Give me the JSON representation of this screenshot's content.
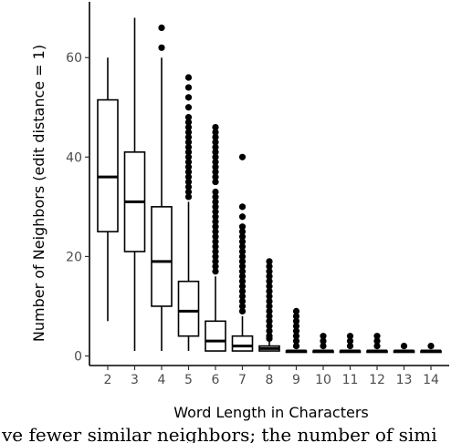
{
  "caption": "ve fewer similar neighbors; the number of simi",
  "chart_data": {
    "type": "boxplot",
    "xlabel": "Word Length in Characters",
    "ylabel": "Number of Neighbors (edit distance = 1)",
    "ylim": [
      -2,
      70
    ],
    "yticks": [
      0,
      20,
      40,
      60
    ],
    "grid": false,
    "categories": [
      "2",
      "3",
      "4",
      "5",
      "6",
      "7",
      "8",
      "9",
      "10",
      "11",
      "12",
      "13",
      "14"
    ],
    "boxes": [
      {
        "category": "2",
        "whisker_low": 7,
        "q1": 25,
        "median": 36,
        "q3": 51.5,
        "whisker_high": 60,
        "outliers": []
      },
      {
        "category": "3",
        "whisker_low": 1,
        "q1": 21,
        "median": 31,
        "q3": 41,
        "whisker_high": 68,
        "outliers": []
      },
      {
        "category": "4",
        "whisker_low": 1,
        "q1": 10,
        "median": 19,
        "q3": 30,
        "whisker_high": 60,
        "outliers": [
          62,
          66
        ]
      },
      {
        "category": "5",
        "whisker_low": 1,
        "q1": 4,
        "median": 9,
        "q3": 15,
        "whisker_high": 31,
        "outliers": [
          32,
          33,
          34,
          35,
          36,
          37,
          38,
          39,
          40,
          41,
          42,
          43,
          44,
          45,
          46,
          47,
          48,
          50,
          52,
          54,
          56
        ]
      },
      {
        "category": "6",
        "whisker_low": 1,
        "q1": 1,
        "median": 3,
        "q3": 7,
        "whisker_high": 16,
        "outliers": [
          17,
          18,
          19,
          20,
          21,
          22,
          23,
          24,
          25,
          26,
          27,
          28,
          29,
          30,
          31,
          32,
          33,
          35,
          36,
          37,
          38,
          39,
          40,
          41,
          42,
          43,
          44,
          45,
          46
        ]
      },
      {
        "category": "7",
        "whisker_low": 1,
        "q1": 1,
        "median": 2,
        "q3": 4,
        "whisker_high": 8,
        "outliers": [
          9,
          10,
          11,
          12,
          13,
          14,
          15,
          16,
          17,
          18,
          19,
          20,
          21,
          22,
          23,
          24,
          25,
          26,
          28,
          30,
          40
        ]
      },
      {
        "category": "8",
        "whisker_low": 1,
        "q1": 1,
        "median": 1.5,
        "q3": 2,
        "whisker_high": 3,
        "outliers": [
          3.5,
          4,
          5,
          6,
          7,
          8,
          9,
          10,
          11,
          12,
          13,
          14,
          15,
          16,
          17,
          18,
          19
        ]
      },
      {
        "category": "9",
        "whisker_low": 1,
        "q1": 1,
        "median": 1,
        "q3": 1,
        "whisker_high": 1,
        "outliers": [
          2,
          3,
          4,
          5,
          6,
          7,
          8,
          9
        ]
      },
      {
        "category": "10",
        "whisker_low": 1,
        "q1": 1,
        "median": 1,
        "q3": 1,
        "whisker_high": 1,
        "outliers": [
          2,
          3,
          4
        ]
      },
      {
        "category": "11",
        "whisker_low": 1,
        "q1": 1,
        "median": 1,
        "q3": 1,
        "whisker_high": 1,
        "outliers": [
          2,
          3,
          4
        ]
      },
      {
        "category": "12",
        "whisker_low": 1,
        "q1": 1,
        "median": 1,
        "q3": 1,
        "whisker_high": 1,
        "outliers": [
          2,
          3,
          4
        ]
      },
      {
        "category": "13",
        "whisker_low": 1,
        "q1": 1,
        "median": 1,
        "q3": 1,
        "whisker_high": 1,
        "outliers": [
          2
        ]
      },
      {
        "category": "14",
        "whisker_low": 1,
        "q1": 1,
        "median": 1,
        "q3": 1,
        "whisker_high": 1,
        "outliers": [
          2
        ]
      }
    ]
  }
}
